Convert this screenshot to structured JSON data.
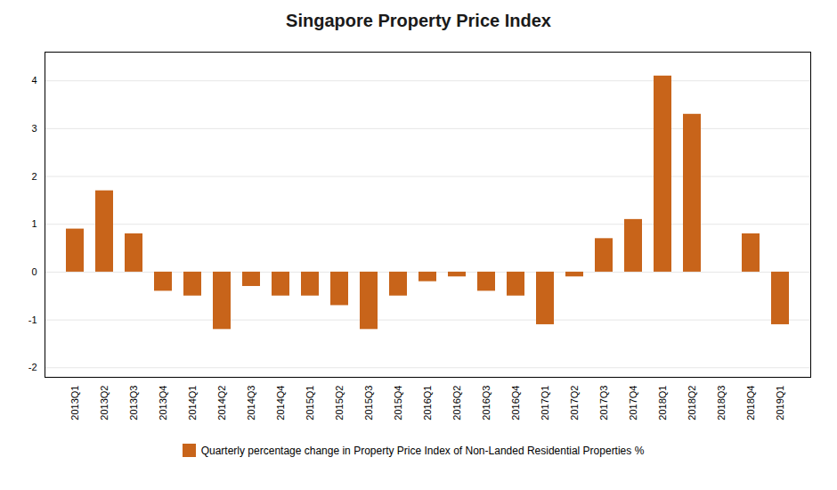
{
  "chart_data": {
    "type": "bar",
    "title": "Singapore Property Price Index",
    "categories": [
      "2013Q1",
      "2013Q2",
      "2013Q3",
      "2013Q4",
      "2014Q1",
      "2014Q2",
      "2014Q3",
      "2014Q4",
      "2015Q1",
      "2015Q2",
      "2015Q3",
      "2015Q4",
      "2016Q1",
      "2016Q2",
      "2016Q3",
      "2016Q4",
      "2017Q1",
      "2017Q2",
      "2017Q3",
      "2017Q4",
      "2018Q1",
      "2018Q2",
      "2018Q3",
      "2018Q4",
      "2019Q1"
    ],
    "series": [
      {
        "name": "Quarterly percentage change in Property Price Index of Non-Landed Residential Properties %",
        "color": "#C8641A",
        "values": [
          0.9,
          1.7,
          0.8,
          -0.4,
          -0.5,
          -1.2,
          -0.3,
          -0.5,
          -0.5,
          -0.7,
          -1.2,
          -0.5,
          -0.2,
          -0.1,
          -0.4,
          -0.5,
          -1.1,
          -0.1,
          0.7,
          1.1,
          4.1,
          3.3,
          0.0,
          0.8,
          -1.1
        ]
      }
    ],
    "ylim": [
      -2.2,
      4.6
    ],
    "yticks": [
      -2,
      -1,
      0,
      1,
      2,
      3,
      4
    ],
    "grid": true,
    "legend": "bottom"
  }
}
